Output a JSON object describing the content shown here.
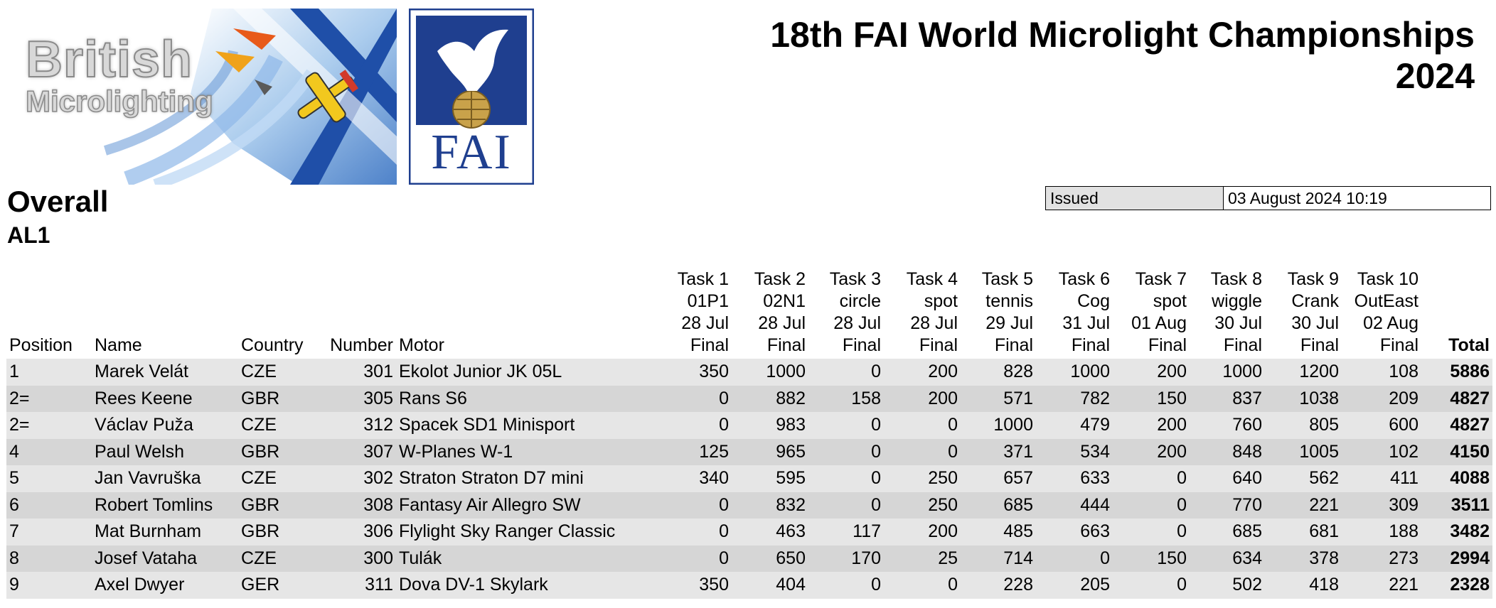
{
  "logos": {
    "british_microlighting": {
      "line1": "British",
      "line2": "Microlighting"
    },
    "fai": {
      "text": "FAI"
    }
  },
  "title": {
    "line1": "18th FAI World Microlight Championships",
    "line2": "2024"
  },
  "issued": {
    "label": "Issued",
    "value": "03 August 2024 10:19"
  },
  "heading": {
    "overall": "Overall",
    "class": "AL1"
  },
  "table": {
    "columns": {
      "position": "Position",
      "name": "Name",
      "country": "Country",
      "number": "Number",
      "motor": "Motor",
      "total": "Total"
    },
    "tasks": [
      {
        "task": "Task 1",
        "code": "01P1",
        "date": "28 Jul",
        "status": "Final"
      },
      {
        "task": "Task 2",
        "code": "02N1",
        "date": "28 Jul",
        "status": "Final"
      },
      {
        "task": "Task 3",
        "code": "circle",
        "date": "28 Jul",
        "status": "Final"
      },
      {
        "task": "Task 4",
        "code": "spot",
        "date": "28 Jul",
        "status": "Final"
      },
      {
        "task": "Task 5",
        "code": "tennis",
        "date": "29 Jul",
        "status": "Final"
      },
      {
        "task": "Task 6",
        "code": "Cog",
        "date": "31 Jul",
        "status": "Final"
      },
      {
        "task": "Task 7",
        "code": "spot",
        "date": "01 Aug",
        "status": "Final"
      },
      {
        "task": "Task 8",
        "code": "wiggle",
        "date": "30 Jul",
        "status": "Final"
      },
      {
        "task": "Task 9",
        "code": "Crank",
        "date": "30 Jul",
        "status": "Final"
      },
      {
        "task": "Task 10",
        "code": "OutEast",
        "date": "02 Aug",
        "status": "Final"
      }
    ],
    "rows": [
      {
        "position": "1",
        "name": "Marek Velát",
        "country": "CZE",
        "number": "301",
        "motor": "Ekolot Junior JK 05L",
        "scores": [
          "350",
          "1000",
          "0",
          "200",
          "828",
          "1000",
          "200",
          "1000",
          "1200",
          "108"
        ],
        "total": "5886"
      },
      {
        "position": "2=",
        "name": "Rees Keene",
        "country": "GBR",
        "number": "305",
        "motor": "Rans S6",
        "scores": [
          "0",
          "882",
          "158",
          "200",
          "571",
          "782",
          "150",
          "837",
          "1038",
          "209"
        ],
        "total": "4827"
      },
      {
        "position": "2=",
        "name": "Václav Puža",
        "country": "CZE",
        "number": "312",
        "motor": "Spacek SD1 Minisport",
        "scores": [
          "0",
          "983",
          "0",
          "0",
          "1000",
          "479",
          "200",
          "760",
          "805",
          "600"
        ],
        "total": "4827"
      },
      {
        "position": "4",
        "name": "Paul Welsh",
        "country": "GBR",
        "number": "307",
        "motor": "W-Planes W-1",
        "scores": [
          "125",
          "965",
          "0",
          "0",
          "371",
          "534",
          "200",
          "848",
          "1005",
          "102"
        ],
        "total": "4150"
      },
      {
        "position": "5",
        "name": "Jan Vavruška",
        "country": "CZE",
        "number": "302",
        "motor": "Straton Straton D7 mini",
        "scores": [
          "340",
          "595",
          "0",
          "250",
          "657",
          "633",
          "0",
          "640",
          "562",
          "411"
        ],
        "total": "4088"
      },
      {
        "position": "6",
        "name": "Robert Tomlins",
        "country": "GBR",
        "number": "308",
        "motor": "Fantasy Air Allegro SW",
        "scores": [
          "0",
          "832",
          "0",
          "250",
          "685",
          "444",
          "0",
          "770",
          "221",
          "309"
        ],
        "total": "3511"
      },
      {
        "position": "7",
        "name": "Mat Burnham",
        "country": "GBR",
        "number": "306",
        "motor": "Flylight Sky Ranger Classic",
        "scores": [
          "0",
          "463",
          "117",
          "200",
          "485",
          "663",
          "0",
          "685",
          "681",
          "188"
        ],
        "total": "3482"
      },
      {
        "position": "8",
        "name": "Josef Vataha",
        "country": "CZE",
        "number": "300",
        "motor": "Tulák",
        "scores": [
          "0",
          "650",
          "170",
          "25",
          "714",
          "0",
          "150",
          "634",
          "378",
          "273"
        ],
        "total": "2994"
      },
      {
        "position": "9",
        "name": "Axel Dwyer",
        "country": "GER",
        "number": "311",
        "motor": "Dova DV-1 Skylark",
        "scores": [
          "350",
          "404",
          "0",
          "0",
          "228",
          "205",
          "0",
          "502",
          "418",
          "221"
        ],
        "total": "2328"
      }
    ]
  }
}
